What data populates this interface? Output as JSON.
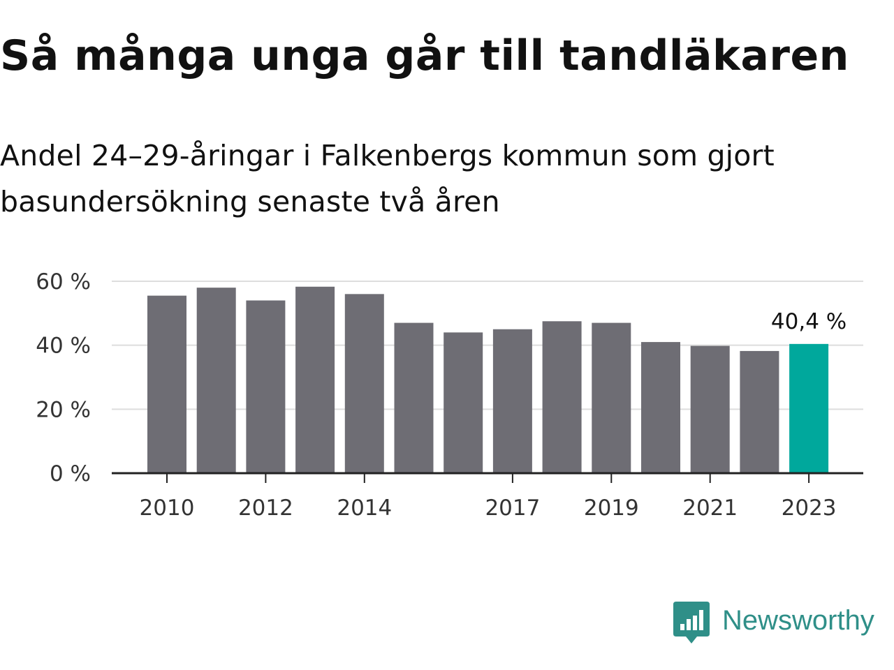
{
  "title": "Så många unga går till tandläkaren",
  "subtitle": "Andel 24–29-åringar i Falkenbergs kommun som gjort basundersökning senaste två åren",
  "brand": {
    "name": "Newsworthy",
    "icon": "bar-chart-speech-bubble-icon",
    "color": "#2f8f88"
  },
  "colors": {
    "bar": "#6e6d74",
    "highlight": "#00a89c",
    "grid": "#dddddd",
    "axis": "#222222",
    "text": "#333333"
  },
  "chart_data": {
    "type": "bar",
    "title": "Så många unga går till tandläkaren",
    "subtitle": "Andel 24–29-åringar i Falkenbergs kommun som gjort basundersökning senaste två åren",
    "categories": [
      "2010",
      "2011",
      "2012",
      "2013",
      "2014",
      "2015",
      "2016",
      "2017",
      "2018",
      "2019",
      "2020",
      "2021",
      "2022",
      "2023"
    ],
    "values": [
      55.5,
      58.0,
      54.0,
      58.3,
      56.0,
      47.0,
      44.0,
      45.0,
      47.5,
      47.0,
      41.0,
      39.8,
      38.2,
      40.4
    ],
    "x_tick_labels": [
      "2010",
      "2012",
      "2014",
      "2017",
      "2019",
      "2021",
      "2023"
    ],
    "y_ticks": [
      0,
      20,
      40,
      60
    ],
    "y_tick_labels": [
      "0 %",
      "20 %",
      "40 %",
      "60 %"
    ],
    "ylim": [
      0,
      60
    ],
    "grid": true,
    "highlight_index": 13,
    "annotation": "40,4 %",
    "xlabel": "",
    "ylabel": ""
  }
}
